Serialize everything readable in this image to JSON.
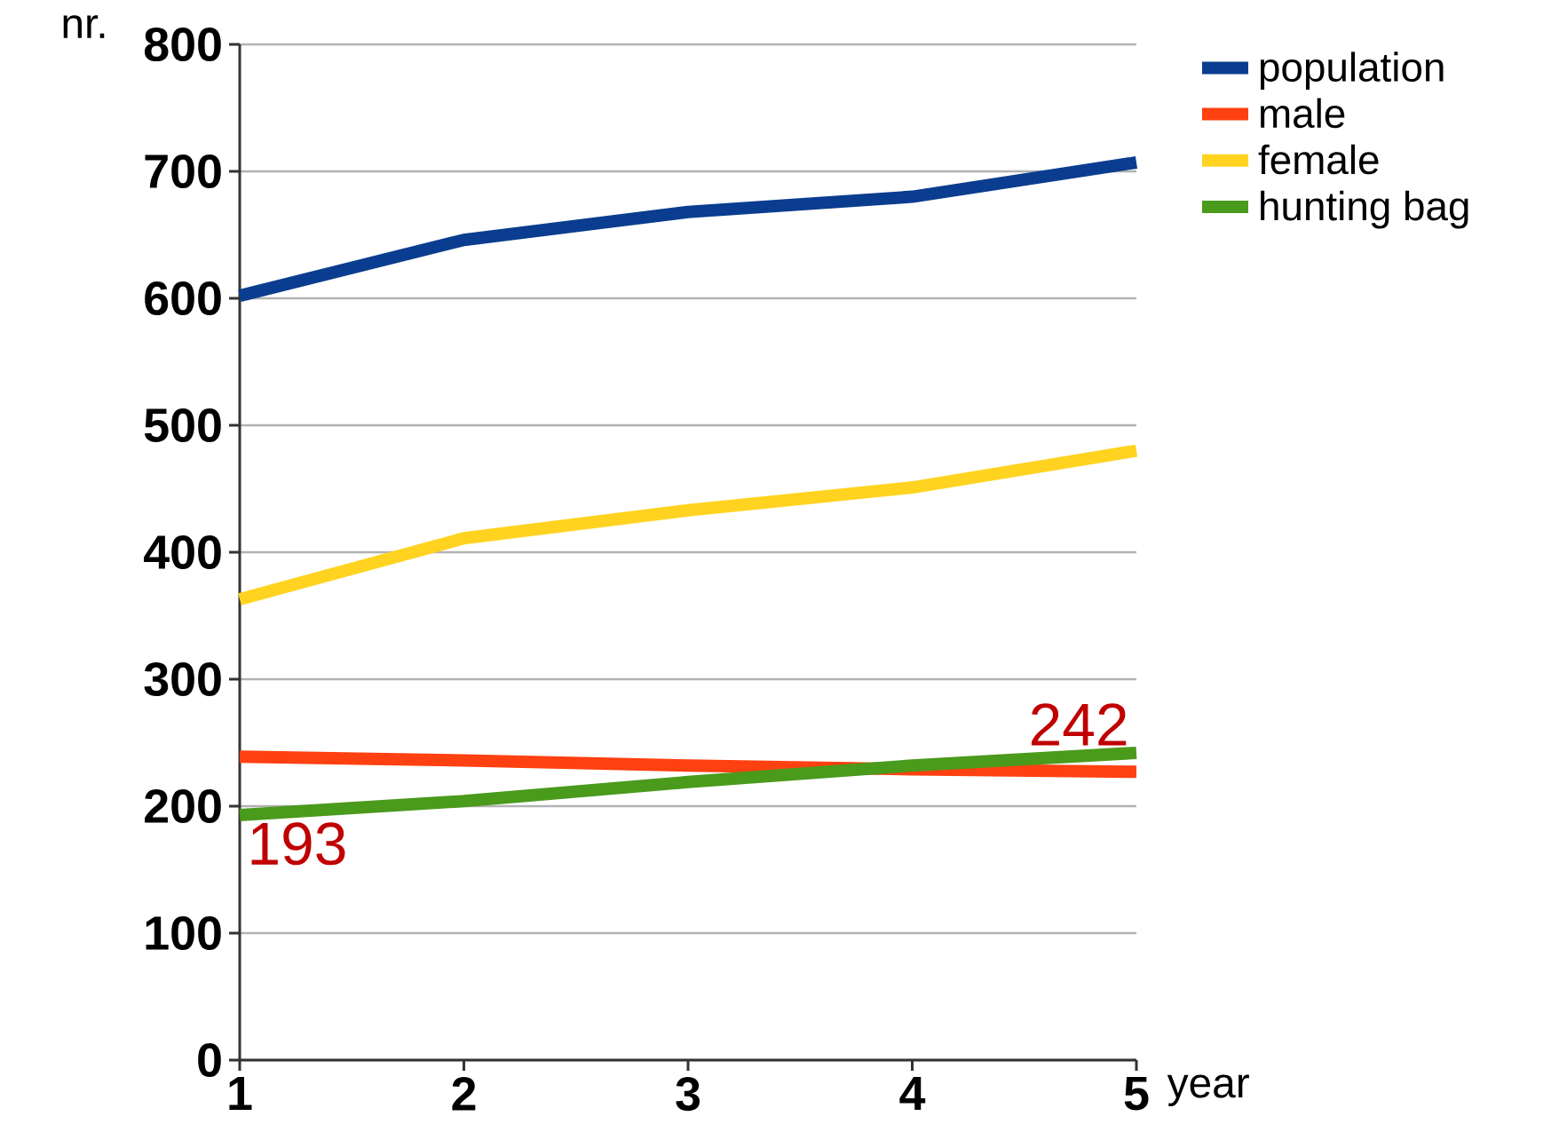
{
  "chart_data": {
    "type": "line",
    "xlabel": "year",
    "ylabel": "nr.",
    "x": [
      1,
      2,
      3,
      4,
      5
    ],
    "series": [
      {
        "name": "population",
        "color": "#0a3d8f",
        "values": [
          602,
          646,
          668,
          680,
          707
        ]
      },
      {
        "name": "male",
        "color": "#ff4010",
        "values": [
          239,
          236,
          232,
          229,
          227
        ]
      },
      {
        "name": "female",
        "color": "#ffd320",
        "values": [
          363,
          411,
          433,
          451,
          480
        ]
      },
      {
        "name": "hunting bag",
        "color": "#4a9a1c",
        "values": [
          193,
          204,
          219,
          232,
          242
        ]
      }
    ],
    "annotations": [
      {
        "text": "193",
        "x": 1,
        "y": 193
      },
      {
        "text": "242",
        "x": 5,
        "y": 242
      }
    ],
    "xlim": [
      1,
      5
    ],
    "xticks": [
      1,
      2,
      3,
      4,
      5
    ],
    "ylim": [
      0,
      800
    ],
    "yticks": [
      0,
      100,
      200,
      300,
      400,
      500,
      600,
      700,
      800
    ],
    "grid": "y",
    "legend": "right",
    "line_style": "solid"
  }
}
